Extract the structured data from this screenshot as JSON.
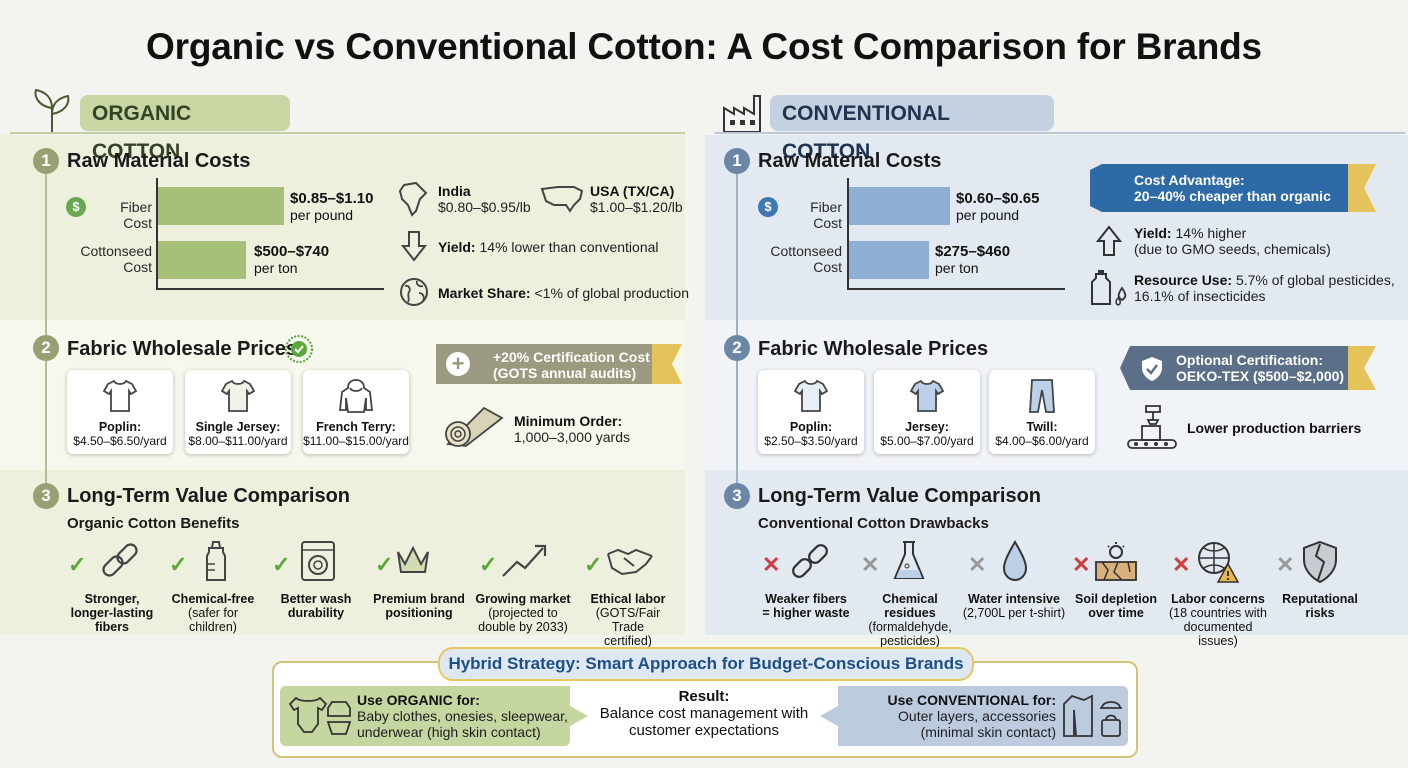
{
  "title": "Organic vs Conventional Cotton: A Cost Comparison for Brands",
  "organic": {
    "header": "ORGANIC COTTON",
    "s1": {
      "num": "1",
      "title": "Raw Material Costs",
      "fiber_label": "Fiber Cost",
      "fiber_value": "$0.85–$1.10",
      "fiber_unit": "per pound",
      "seed_label_1": "Cottonseed",
      "seed_label_2": "Cost",
      "seed_value": "$500–$740",
      "seed_unit": "per ton",
      "india_label": "India",
      "india_value": "$0.80–$0.95/lb",
      "usa_label": "USA (TX/CA)",
      "usa_value": "$1.00–$1.20/lb",
      "yield_label": "Yield:",
      "yield_text": "14% lower than conventional",
      "share_label": "Market Share:",
      "share_text": "<1% of global production"
    },
    "s2": {
      "num": "2",
      "title": "Fabric Wholesale Prices",
      "fabrics": [
        {
          "name": "Poplin:",
          "price": "$4.50–$6.50/yard"
        },
        {
          "name": "Single Jersey:",
          "price": "$8.00–$11.00/yard"
        },
        {
          "name": "French Terry:",
          "price": "$11.00–$15.00/yard"
        }
      ],
      "cert_line1": "+20% Certification Cost",
      "cert_line2": "(GOTS annual audits)",
      "min_label": "Minimum Order:",
      "min_value": "1,000–3,000 yards"
    },
    "s3": {
      "num": "3",
      "title": "Long-Term Value Comparison",
      "subtitle": "Organic Cotton Benefits",
      "items": [
        {
          "l1": "Stronger,",
          "l2": "longer-lasting",
          "l3": "fibers",
          "bold": true
        },
        {
          "l1": "Chemical-free",
          "l2": "(safer for children)",
          "l3": "",
          "bold": false
        },
        {
          "l1": "Better wash",
          "l2": "durability",
          "l3": "",
          "bold": true
        },
        {
          "l1": "Premium brand",
          "l2": "positioning",
          "l3": "",
          "bold": true
        },
        {
          "l1": "Growing market",
          "l2": "(projected to",
          "l3": "double by 2033)",
          "bold": false
        },
        {
          "l1": "Ethical labor",
          "l2": "(GOTS/Fair Trade",
          "l3": "certified)",
          "bold": false
        }
      ]
    }
  },
  "conventional": {
    "header": "CONVENTIONAL COTTON",
    "s1": {
      "num": "1",
      "title": "Raw Material Costs",
      "fiber_label": "Fiber Cost",
      "fiber_value": "$0.60–$0.65",
      "fiber_unit": "per pound",
      "seed_label_1": "Cottonseed",
      "seed_label_2": "Cost",
      "seed_value": "$275–$460",
      "seed_unit": "per ton",
      "adv_line1": "Cost Advantage:",
      "adv_line2": "20–40% cheaper than organic",
      "yield_label": "Yield:",
      "yield_text": "14% higher",
      "yield_note": "(due to GMO seeds, chemicals)",
      "res_label": "Resource Use:",
      "res_text": "5.7% of global pesticides,",
      "res_note": "16.1% of insecticides"
    },
    "s2": {
      "num": "2",
      "title": "Fabric Wholesale Prices",
      "fabrics": [
        {
          "name": "Poplin:",
          "price": "$2.50–$3.50/yard"
        },
        {
          "name": "Jersey:",
          "price": "$5.00–$7.00/yard"
        },
        {
          "name": "Twill:",
          "price": "$4.00–$6.00/yard"
        }
      ],
      "cert_line1": "Optional Certification:",
      "cert_line2": "OEKO-TEX ($500–$2,000)",
      "barrier_text": "Lower production barriers"
    },
    "s3": {
      "num": "3",
      "title": "Long-Term Value Comparison",
      "subtitle": "Conventional Cotton Drawbacks",
      "items": [
        {
          "l1": "Weaker fibers",
          "l2": "= higher waste",
          "l3": "",
          "bold": true
        },
        {
          "l1": "Chemical residues",
          "l2": "(formaldehyde,",
          "l3": "pesticides)",
          "bold": false
        },
        {
          "l1": "Water intensive",
          "l2": "(2,700L per t-shirt)",
          "l3": "",
          "bold": false
        },
        {
          "l1": "Soil depletion",
          "l2": "over time",
          "l3": "",
          "bold": true
        },
        {
          "l1": "Labor concerns",
          "l2": "(18 countries with",
          "l3": "documented issues)",
          "bold": false
        },
        {
          "l1": "Reputational",
          "l2": "risks",
          "l3": "",
          "bold": true
        }
      ]
    }
  },
  "hybrid": {
    "title": "Hybrid Strategy: Smart Approach for Budget-Conscious Brands",
    "organic_label": "Use ORGANIC for:",
    "organic_l1": "Baby clothes, onesies, sleepwear,",
    "organic_l2": "underwear (high skin contact)",
    "result_label": "Result:",
    "result_l1": "Balance cost management with",
    "result_l2": "customer expectations",
    "conv_label": "Use CONVENTIONAL for:",
    "conv_l1": "Outer layers, accessories",
    "conv_l2": "(minimal skin contact)"
  },
  "colors": {
    "organic": "#a6c07c",
    "conventional": "#8eaed4",
    "check": "#5aa83c",
    "cross": "#d23c3c",
    "gold": "#e6c25a"
  }
}
